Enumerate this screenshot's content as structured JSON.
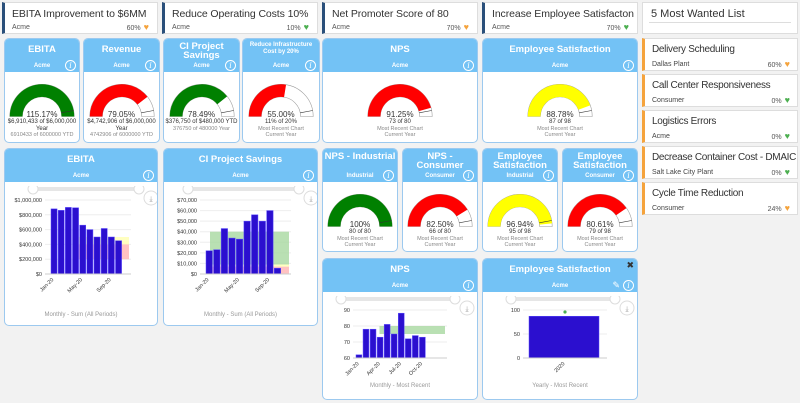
{
  "goals": [
    {
      "title": "EBITA Improvement to $6MM",
      "org": "Acme",
      "pct": "60%",
      "heart": "#f5a33c"
    },
    {
      "title": "Reduce Operating Costs 10%",
      "org": "Acme",
      "pct": "10%",
      "heart": "#4caf50"
    },
    {
      "title": "Net Promoter Score of 80",
      "org": "Acme",
      "pct": "70%",
      "heart": "#f5a33c"
    },
    {
      "title": "Increase Employee Satisfacton",
      "org": "Acme",
      "pct": "70%",
      "heart": "#4caf50"
    }
  ],
  "most_wanted": {
    "title": "5 Most Wanted List",
    "items": [
      {
        "title": "Delivery Scheduling",
        "org": "Dallas Plant",
        "pct": "60%",
        "heart": "#f5a33c"
      },
      {
        "title": "Call Center Responsiveness",
        "org": "Consumer",
        "pct": "0%",
        "heart": "#4caf50"
      },
      {
        "title": "Logistics Errors",
        "org": "Acme",
        "pct": "0%",
        "heart": "#4caf50"
      },
      {
        "title": "Decrease Container Cost - DMAIC",
        "org": "Salt Lake City Plant",
        "pct": "0%",
        "heart": "#4caf50"
      },
      {
        "title": "Cycle Time Reduction",
        "org": "Consumer",
        "pct": "24%",
        "heart": "#f5a33c"
      }
    ]
  },
  "gauges": [
    {
      "title": "EBITA",
      "sub": "Acme",
      "value": "115.17%",
      "fraction": 1.1517,
      "color": "#008000",
      "line1": "$6,910,433 of $6,000,000",
      "line2": "Year",
      "line3": "6910433 of 6000000 YTD"
    },
    {
      "title": "Revenue",
      "sub": "Acme",
      "value": "79.05%",
      "fraction": 0.7905,
      "color": "#ff0000",
      "line1": "$4,742,906 of $6,000,000",
      "line2": "Year",
      "line3": "4742906 of 6000000 YTD"
    },
    {
      "title": "CI Project Savings",
      "sub": "Acme",
      "value": "78.49%",
      "fraction": 0.7849,
      "color": "#008000",
      "line1": "$376,750 of $480,000 YTD",
      "line2": "",
      "line3": "376750 of 480000 Year"
    },
    {
      "title": "Reduce Infrastructure Cost by 20%",
      "sub": "Acme",
      "value": "55.00%",
      "fraction": 0.55,
      "color": "#ff0000",
      "line1": "11% of 20%",
      "line2": "Most Recent Chart",
      "line3": "Current Year"
    },
    {
      "title": "NPS",
      "sub": "Acme",
      "value": "91.25%",
      "fraction": 0.9125,
      "color": "#ff0000",
      "line1": "73 of 80",
      "line2": "Most Recent Chart",
      "line3": "Current Year"
    },
    {
      "title": "Employee Satisfaction",
      "sub": "Acme",
      "value": "88.78%",
      "fraction": 0.8878,
      "color": "#ffff00",
      "line1": "87 of 98",
      "line2": "Most Recent Chart",
      "line3": "Current Year"
    },
    {
      "title": "NPS - Industrial",
      "sub": "Industrial",
      "value": "100%",
      "fraction": 1.0,
      "color": "#008000",
      "line1": "80 of 80",
      "line2": "Most Recent Chart",
      "line3": "Current Year"
    },
    {
      "title": "NPS - Consumer",
      "sub": "Consumer",
      "value": "82.50%",
      "fraction": 0.825,
      "color": "#ff0000",
      "line1": "66 of 80",
      "line2": "Most Recent Chart",
      "line3": "Current Year"
    },
    {
      "title": "Employee Satisfaction",
      "sub": "Industrial",
      "value": "96.94%",
      "fraction": 0.9694,
      "color": "#ffff00",
      "line1": "95 of 98",
      "line2": "Most Recent Chart",
      "line3": "Current Year"
    },
    {
      "title": "Employee Satisfaction",
      "sub": "Consumer",
      "value": "80.61%",
      "fraction": 0.8061,
      "color": "#ff0000",
      "line1": "79 of 98",
      "line2": "Most Recent Chart",
      "line3": "Current Year"
    }
  ],
  "chart_data": [
    {
      "type": "bar",
      "title": "EBITA",
      "sub": "Acme",
      "footer": "Monthly - Sum (All Periods)",
      "categories": [
        "Jan-20",
        "Feb-20",
        "Mar-20",
        "Apr-20",
        "May-20",
        "Jun-20",
        "Jul-20",
        "Aug-20",
        "Sep-20",
        "Oct-20"
      ],
      "values": [
        880000,
        860000,
        900000,
        895000,
        660000,
        600000,
        500000,
        615000,
        500000,
        450000
      ],
      "ylim": [
        0,
        1000000
      ],
      "yticks": [
        "$0",
        "$200,000",
        "$400,000",
        "$600,000",
        "$800,000",
        "$1,000,000"
      ],
      "xticks": [
        "Jan-20",
        "May-20",
        "Sep-20"
      ],
      "bands": [
        {
          "from": 200000,
          "to": 400000,
          "color": "#ffb3b3"
        },
        {
          "from": 400000,
          "to": 450000,
          "color": "#ffffb0"
        },
        {
          "from": 450000,
          "to": 500000,
          "color": "#ffffb0"
        }
      ],
      "bar_color": "#2b0fcf"
    },
    {
      "type": "bar",
      "title": "CI Project Savings",
      "sub": "Acme",
      "footer": "Monthly - Sum (All Periods)",
      "categories": [
        "Jan-20",
        "Feb-20",
        "Mar-20",
        "Apr-20",
        "May-20",
        "Jun-20",
        "Jul-20",
        "Aug-20",
        "Sep-20",
        "Oct-20"
      ],
      "values": [
        22000,
        23000,
        43000,
        34000,
        33000,
        50000,
        56000,
        50000,
        60000,
        5500
      ],
      "ylim": [
        0,
        70000
      ],
      "yticks": [
        "$0",
        "$10,000",
        "$20,000",
        "$30,000",
        "$40,000",
        "$50,000",
        "$60,000",
        "$70,000"
      ],
      "xticks": [
        "Jan-20",
        "May-20",
        "Sep-20"
      ],
      "bands": [
        {
          "from": 0,
          "to": 7000,
          "color": "#ffb3b3"
        },
        {
          "from": 7000,
          "to": 9000,
          "color": "#ffffb0"
        },
        {
          "from": 9000,
          "to": 40000,
          "color": "#a8d8a0"
        }
      ],
      "bar_color": "#2b0fcf"
    },
    {
      "type": "bar",
      "title": "NPS",
      "sub": "Acme",
      "footer": "Monthly - Most Recent",
      "categories": [
        "Jan-20",
        "Feb-20",
        "Mar-20",
        "Apr-20",
        "May-20",
        "Jun-20",
        "Jul-20",
        "Aug-20",
        "Sep-20",
        "Oct-20"
      ],
      "values": [
        62,
        78,
        78,
        73,
        81,
        75,
        88,
        72,
        74,
        73
      ],
      "ylim": [
        60,
        90
      ],
      "yticks": [
        "60",
        "70",
        "80",
        "90"
      ],
      "xticks": [
        "Jan-20",
        "Apr-20",
        "Jul-20",
        "Oct-20"
      ],
      "bands": [
        {
          "from": 75,
          "to": 80,
          "color": "#a8d8a0"
        }
      ],
      "bar_color": "#2b0fcf"
    },
    {
      "type": "bar",
      "title": "Employee Satisfaction",
      "sub": "Acme",
      "footer": "Yearly - Most Recent",
      "categories": [
        "2020"
      ],
      "values": [
        87
      ],
      "target": 100,
      "ylim": [
        0,
        100
      ],
      "yticks": [
        "0",
        "50",
        "100"
      ],
      "xticks": [
        "2020"
      ],
      "bands": [],
      "bar_color": "#2b0fcf"
    }
  ]
}
